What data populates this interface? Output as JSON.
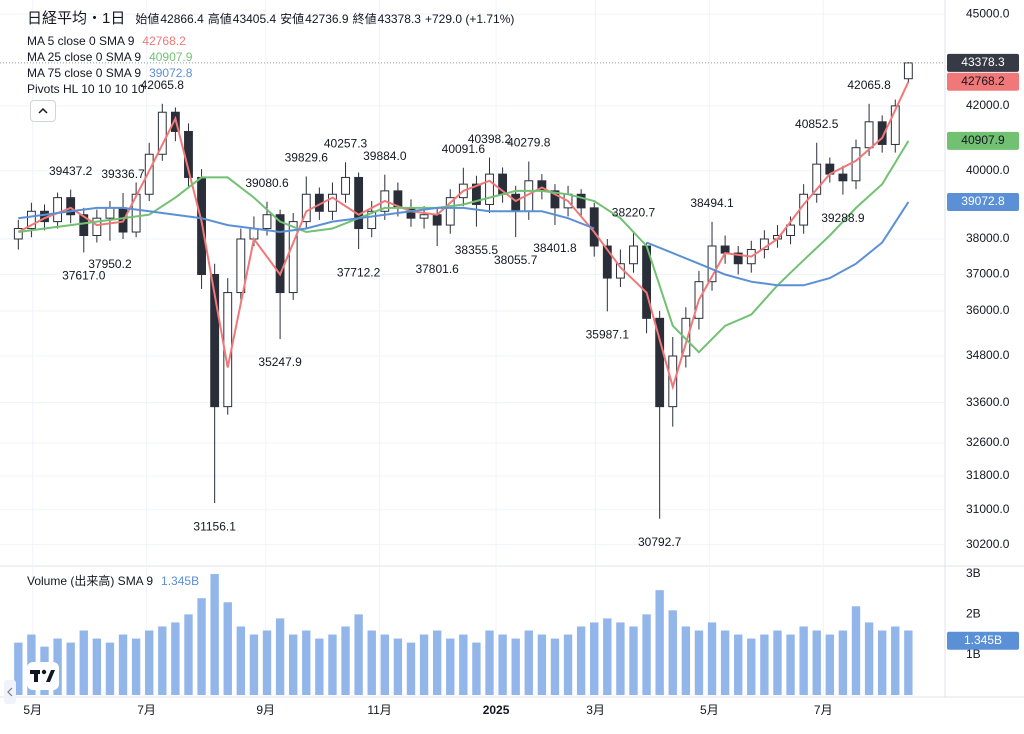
{
  "chart_data": [
    {
      "type": "candlestick",
      "title": "日経平均・1日",
      "ohlc_names": [
        "始値",
        "高値",
        "安値",
        "終値"
      ],
      "ohlc_values": [
        42866.4,
        43405.4,
        42736.9,
        43378.3
      ],
      "change": "+729.0 (+1.71%)",
      "open": [
        38000,
        38300,
        38800,
        38500,
        39200,
        38700,
        38100,
        38600,
        38900,
        38200,
        39300,
        40500,
        41800,
        41200,
        39800,
        37000,
        33500,
        36500,
        38000,
        38300,
        38700,
        36500,
        38500,
        39300,
        38800,
        39300,
        39800,
        38300,
        38800,
        39400,
        38900,
        38600,
        38700,
        38400,
        39200,
        39600,
        39000,
        39900,
        39300,
        38800,
        39700,
        39400,
        38900,
        39300,
        38900,
        37800,
        36900,
        37300,
        37800,
        35800,
        33500,
        34800,
        35800,
        36800,
        37800,
        37600,
        37300,
        37700,
        38000,
        38100,
        38400,
        39300,
        40200,
        39900,
        39700,
        40700,
        41500,
        40800,
        42866.4
      ],
      "high": [
        38550,
        39050,
        39000,
        39350,
        39437.2,
        38900,
        38850,
        39100,
        39336.7,
        39650,
        40850,
        42065.8,
        41950,
        41450,
        40050,
        37300,
        36900,
        38300,
        38650,
        39080.6,
        38850,
        38750,
        39829.6,
        39500,
        39650,
        40257.3,
        39950,
        39100,
        39884,
        39650,
        39150,
        38950,
        38900,
        39450,
        40091.6,
        39850,
        40398.2,
        40100,
        39550,
        40279.8,
        39900,
        39600,
        39550,
        39450,
        39050,
        38000,
        37700,
        38220.7,
        37900,
        36000,
        35300,
        36100,
        37100,
        38494.1,
        38100,
        37800,
        37950,
        38250,
        38400,
        38650,
        39600,
        40852.5,
        40400,
        40150,
        40950,
        42065.8,
        41700,
        42200,
        43405.4
      ],
      "low": [
        37700,
        38050,
        38250,
        38300,
        38450,
        37617,
        37900,
        37950.2,
        38000,
        38050,
        39100,
        40300,
        40900,
        39500,
        36600,
        31156.1,
        33300,
        36300,
        37800,
        38100,
        35247.9,
        36300,
        38300,
        38550,
        38550,
        39050,
        37712.2,
        38050,
        38550,
        38650,
        38350,
        38300,
        37801.6,
        38150,
        38950,
        38355.5,
        38750,
        39050,
        38055.7,
        38550,
        39150,
        38401.8,
        38650,
        38650,
        37500,
        35987.1,
        36650,
        37050,
        35400,
        30792.7,
        33000,
        34500,
        35500,
        36550,
        37300,
        37000,
        37050,
        37450,
        37750,
        37850,
        38150,
        39050,
        39650,
        39288.9,
        39450,
        40450,
        40550,
        40550,
        42736.9
      ],
      "close": [
        38300,
        38800,
        38500,
        39200,
        38700,
        38100,
        38600,
        38900,
        38200,
        39300,
        40500,
        41800,
        41200,
        39800,
        37000,
        33500,
        36500,
        38000,
        38300,
        38700,
        36500,
        38500,
        39300,
        38800,
        39300,
        39800,
        38300,
        38800,
        39400,
        38900,
        38600,
        38700,
        38400,
        39200,
        39600,
        39000,
        39900,
        39300,
        38800,
        39700,
        39400,
        38900,
        39300,
        38900,
        37800,
        36900,
        37300,
        37800,
        35800,
        33500,
        34800,
        35800,
        36800,
        37800,
        37600,
        37300,
        37700,
        38000,
        38100,
        38400,
        39300,
        40200,
        39900,
        39700,
        40700,
        41500,
        40800,
        42000,
        43378.3
      ],
      "up_color": "#ffffff",
      "down_color": "#2a2e39",
      "wick_color": "#2a2e39",
      "series": [
        {
          "name": "MA 5 close 0 SMA 9",
          "color": "#f07878",
          "x": [
            0,
            2,
            4,
            6,
            8,
            10,
            12,
            14,
            16,
            18,
            20,
            22,
            24,
            26,
            28,
            30,
            32,
            34,
            36,
            38,
            40,
            42,
            44,
            46,
            48,
            50,
            52,
            54,
            56,
            58,
            60,
            62,
            64,
            66,
            68
          ],
          "values": [
            38200,
            38600,
            38900,
            38400,
            38500,
            40000,
            41600,
            38500,
            34500,
            38000,
            37000,
            38800,
            39200,
            38700,
            39100,
            38800,
            38700,
            39400,
            39700,
            39100,
            39500,
            39100,
            38200,
            37200,
            36500,
            34000,
            36300,
            37600,
            37500,
            38000,
            39000,
            39900,
            40300,
            41000,
            42768.2
          ]
        },
        {
          "name": "MA 25 close 0 SMA 9",
          "color": "#72c172",
          "x": [
            0,
            2,
            4,
            6,
            8,
            10,
            12,
            14,
            16,
            18,
            20,
            22,
            24,
            26,
            28,
            30,
            32,
            34,
            36,
            38,
            40,
            42,
            44,
            46,
            48,
            50,
            52,
            54,
            56,
            58,
            60,
            62,
            64,
            66,
            68
          ],
          "values": [
            38200,
            38300,
            38400,
            38500,
            38600,
            38700,
            39200,
            39800,
            39800,
            39200,
            38500,
            38200,
            38300,
            38600,
            38900,
            38900,
            38900,
            39000,
            39200,
            39400,
            39400,
            39300,
            39100,
            38600,
            37800,
            35600,
            34900,
            35600,
            35900,
            36700,
            37400,
            38100,
            38900,
            39600,
            40907.9
          ]
        },
        {
          "name": "MA 75 close 0 SMA 9",
          "color": "#5b8fd6",
          "x": [
            0,
            2,
            4,
            6,
            8,
            10,
            12,
            14,
            16,
            18,
            20,
            22,
            24,
            26,
            28,
            30,
            32,
            34,
            36,
            38,
            40,
            42,
            44,
            46,
            48,
            50,
            52,
            54,
            56,
            58,
            60,
            62,
            64,
            66,
            68
          ],
          "values": [
            38600,
            38700,
            38800,
            38900,
            38900,
            38800,
            38700,
            38600,
            38400,
            38300,
            38200,
            38300,
            38500,
            38600,
            38700,
            38800,
            38900,
            38900,
            38800,
            38800,
            38800,
            38600,
            38300,
            null,
            37900,
            37600,
            37300,
            37000,
            36800,
            36700,
            36700,
            36900,
            37300,
            37900,
            39072.8
          ]
        }
      ],
      "pivots": {
        "name": "Pivots HL 10 10 10 10",
        "highs": {
          "x": [
            4,
            8,
            11,
            19,
            22,
            25,
            28,
            34,
            36,
            39,
            47,
            53,
            61,
            65
          ],
          "values": [
            39437.2,
            39336.7,
            42065.8,
            39080.6,
            39829.6,
            40257.3,
            {
              "value": 39884,
              "label": "39884.0"
            },
            40091.6,
            40398.2,
            40279.8,
            38220.7,
            38494.1,
            40852.5,
            42065.8
          ]
        },
        "lows": {
          "x": [
            5,
            7,
            15,
            20,
            26,
            32,
            35,
            38,
            41,
            45,
            49,
            63
          ],
          "values": [
            {
              "value": 37617,
              "label": "37617.0"
            },
            37950.2,
            31156.1,
            35247.9,
            37712.2,
            37801.6,
            38355.5,
            38055.7,
            38401.8,
            35987.1,
            30792.7,
            39288.9
          ]
        }
      },
      "xlim": [
        -1.4,
        70.8
      ],
      "xticks": [
        {
          "value": 1.1,
          "label": "5月"
        },
        {
          "value": 9.8,
          "label": "7月"
        },
        {
          "value": 18.9,
          "label": "9月"
        },
        {
          "value": 27.6,
          "label": "11月"
        },
        {
          "value": 36.5,
          "label": "2025"
        },
        {
          "value": 44.1,
          "label": "3月"
        },
        {
          "value": 52.8,
          "label": "5月"
        },
        {
          "value": 61.5,
          "label": "7月"
        }
      ],
      "ylim": [
        29740,
        45480
      ],
      "yticks": [
        {
          "value": 30200,
          "label": "30200.0"
        },
        {
          "value": 31000,
          "label": "31000.0"
        },
        {
          "value": 31800,
          "label": "31800.0"
        },
        {
          "value": 32600,
          "label": "32600.0"
        },
        {
          "value": 33600,
          "label": "33600.0"
        },
        {
          "value": 34800,
          "label": "34800.0"
        },
        {
          "value": 36000,
          "label": "36000.0"
        },
        {
          "value": 37000,
          "label": "37000.0"
        },
        {
          "value": 38000,
          "label": "38000.0"
        },
        {
          "value": 40000,
          "label": "40000.0"
        },
        {
          "value": 42000,
          "label": "42000.0"
        },
        {
          "value": 45000,
          "label": "45000.0"
        }
      ],
      "log": true,
      "grid": true,
      "last_color": "#363a45"
    },
    {
      "type": "bar",
      "title": "Volume (出来高) SMA 9",
      "values": [
        1.3,
        1.5,
        1.2,
        1.4,
        1.3,
        1.6,
        1.4,
        1.3,
        1.5,
        1.4,
        1.6,
        1.7,
        1.8,
        2.0,
        2.4,
        3.0,
        2.3,
        1.7,
        1.5,
        1.6,
        1.9,
        1.5,
        1.6,
        1.4,
        1.5,
        1.7,
        2.0,
        1.6,
        1.5,
        1.4,
        1.3,
        1.5,
        1.6,
        1.4,
        1.5,
        1.3,
        1.6,
        1.5,
        1.4,
        1.6,
        1.5,
        1.4,
        1.5,
        1.7,
        1.8,
        1.9,
        1.8,
        1.7,
        2.0,
        2.6,
        2.1,
        1.7,
        1.6,
        1.8,
        1.6,
        1.5,
        1.4,
        1.5,
        1.6,
        1.5,
        1.7,
        1.6,
        1.5,
        1.6,
        2.2,
        1.8,
        1.6,
        1.7,
        1.6
      ],
      "color": "#93b6ea",
      "sma": {
        "value": 1.345,
        "label": "1.345B"
      },
      "sma_color": "#5b8fd6",
      "ylim": [
        0,
        3.175
      ],
      "yticks": [
        {
          "value": 1,
          "label": "1B"
        },
        {
          "value": 2,
          "label": "2B"
        },
        {
          "value": 3,
          "label": "3B"
        }
      ]
    }
  ]
}
